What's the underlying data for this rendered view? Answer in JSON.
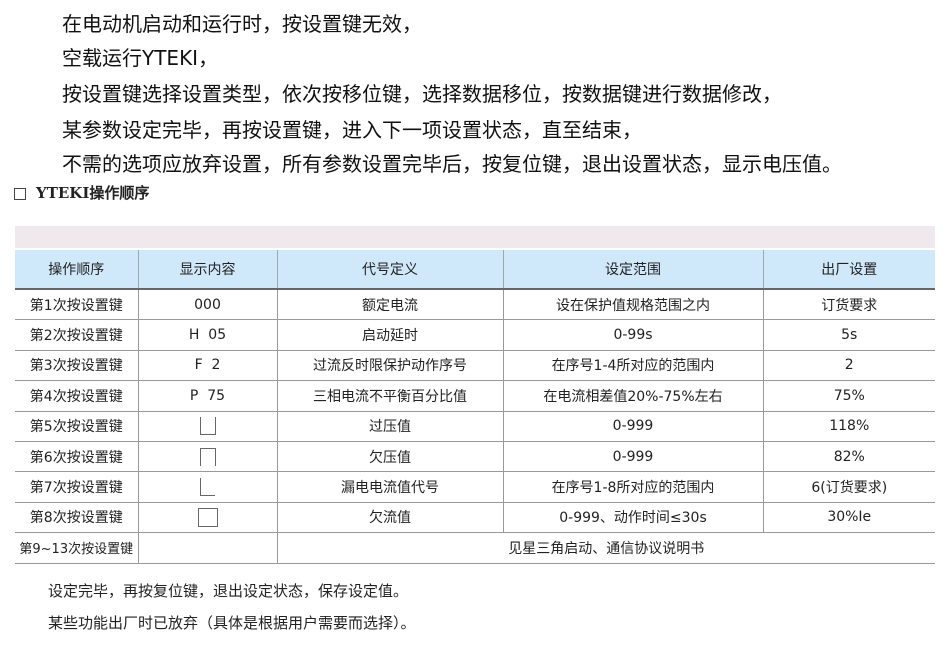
{
  "intro": [
    "在电动机启动和运行时，按设置键无效，",
    "空载运行YTEKI，",
    "按设置键选择设置类型，依次按移位键，选择数据移位，按数据键进行数据修改，",
    "某参数设定完毕，再按设置键，进入下一项设置状态，直至结束，",
    "不需的选项应放弃设置，所有参数设置完毕后，按复位键，退出设置状态，显示电压值。"
  ],
  "section_title": "YTEKI操作顺序",
  "table": {
    "headers": [
      "操作顺序",
      "显示内容",
      "代号定义",
      "设定范围",
      "出厂设置"
    ],
    "rows": [
      [
        "第1次按设置键",
        "000",
        "额定电流",
        "设在保护值规格范围之内",
        "订货要求"
      ],
      [
        "第2次按设置键",
        "H  05",
        "启动延时",
        "0-99s",
        "5s"
      ],
      [
        "第3次按设置键",
        "F  2",
        "过流反时限保护动作序号",
        "在序号1-4所对应的范围内",
        "2"
      ],
      [
        "第4次按设置键",
        "P  75",
        "三相电流不平衡百分比值",
        "在电流相差值20%-75%左右",
        "75%"
      ],
      [
        "第5次按设置键",
        "",
        "过压值",
        "0-999",
        "118%"
      ],
      [
        "第6次按设置键",
        "",
        "欠压值",
        "0-999",
        "82%"
      ],
      [
        "第7次按设置键",
        "",
        "漏电电流值代号",
        "在序号1-8所对应的范围内",
        "6(订货要求)"
      ],
      [
        "第8次按设置键",
        "",
        "欠流值",
        "0-999、动作时间≤30s",
        "30%Ie"
      ]
    ],
    "last_row": {
      "step": "第9~13次按设置键",
      "note": "见星三角启动、通信协议说明书"
    }
  },
  "footer": [
    "设定完毕，再按复位键，退出设定状态，保存设定值。",
    "某些功能出厂时已放弃（具体是根据用户需要而选择）。"
  ]
}
